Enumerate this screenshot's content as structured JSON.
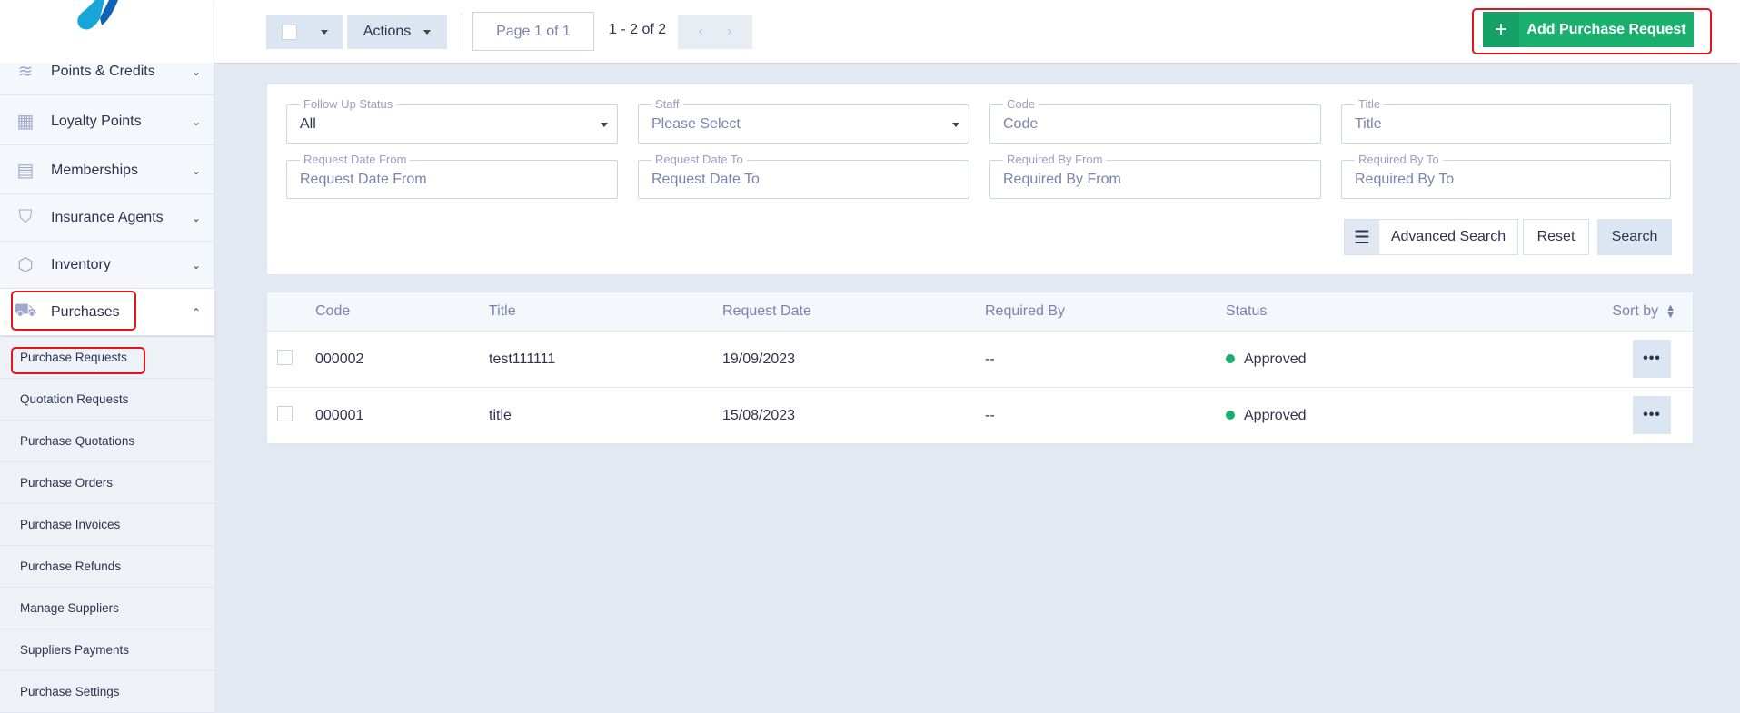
{
  "sidebar": {
    "items": [
      {
        "label": "Points & Credits",
        "icon": "layers-icon",
        "expanded": false
      },
      {
        "label": "Loyalty Points",
        "icon": "gift-icon",
        "expanded": false
      },
      {
        "label": "Memberships",
        "icon": "id-card-icon",
        "expanded": false
      },
      {
        "label": "Insurance Agents",
        "icon": "shield-icon",
        "expanded": false
      },
      {
        "label": "Inventory",
        "icon": "box-icon",
        "expanded": false
      },
      {
        "label": "Purchases",
        "icon": "truck-icon",
        "expanded": true
      }
    ],
    "subitems": [
      "Purchase Requests",
      "Quotation Requests",
      "Purchase Quotations",
      "Purchase Orders",
      "Purchase Invoices",
      "Purchase Refunds",
      "Manage Suppliers",
      "Suppliers Payments",
      "Purchase Settings"
    ],
    "active_subitem": "Purchase Requests"
  },
  "toolbar": {
    "actions_label": "Actions",
    "page_label": "Page 1 of 1",
    "range": "1 - 2 of 2",
    "add_label": "Add Purchase Request",
    "add_color": "#1aae6f"
  },
  "filters": {
    "follow_up_status": {
      "label": "Follow Up Status",
      "value": "All"
    },
    "staff": {
      "label": "Staff",
      "value": "Please Select"
    },
    "code": {
      "label": "Code",
      "placeholder": "Code"
    },
    "title": {
      "label": "Title",
      "placeholder": "Title"
    },
    "request_date_from": {
      "label": "Request Date From",
      "placeholder": "Request Date From"
    },
    "request_date_to": {
      "label": "Request Date To",
      "placeholder": "Request Date To"
    },
    "required_by_from": {
      "label": "Required By From",
      "placeholder": "Required By From"
    },
    "required_by_to": {
      "label": "Required By To",
      "placeholder": "Required By To"
    },
    "advanced_label": "Advanced Search",
    "reset_label": "Reset",
    "search_label": "Search"
  },
  "table": {
    "headers": {
      "code": "Code",
      "title": "Title",
      "request_date": "Request Date",
      "required_by": "Required By",
      "status": "Status",
      "sort": "Sort by"
    },
    "rows": [
      {
        "code": "000002",
        "title": "test111111",
        "request_date": "19/09/2023",
        "required_by": "--",
        "status": "Approved"
      },
      {
        "code": "000001",
        "title": "title",
        "request_date": "15/08/2023",
        "required_by": "--",
        "status": "Approved"
      }
    ]
  }
}
